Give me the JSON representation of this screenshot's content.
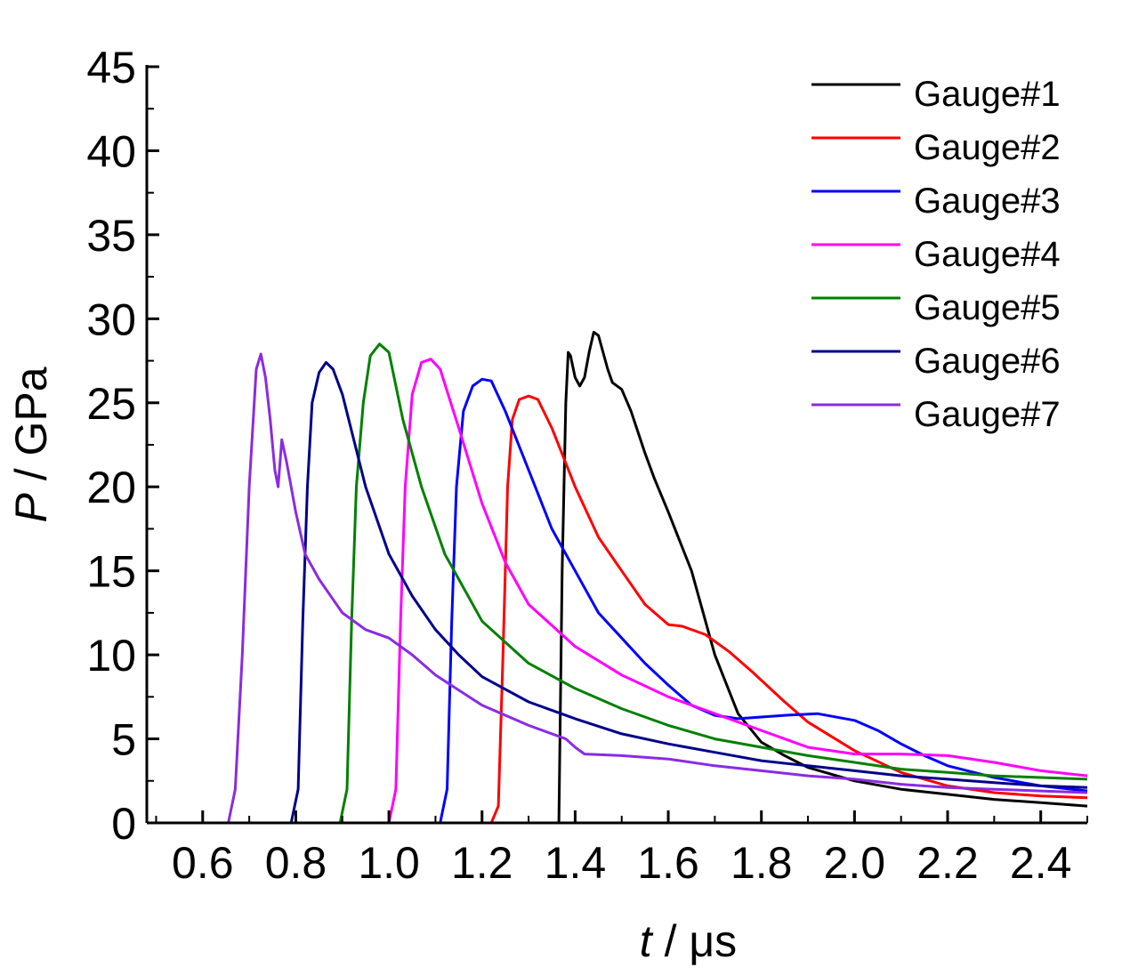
{
  "chart_data": {
    "type": "line",
    "xlabel": {
      "var": "t",
      "unit": " / μs"
    },
    "ylabel": {
      "var": "P",
      "unit": " / GPa"
    },
    "xlim": [
      0.48,
      2.5
    ],
    "ylim": [
      0,
      45
    ],
    "x_ticks": [
      "0.6",
      "0.8",
      "1.0",
      "1.2",
      "1.4",
      "1.6",
      "1.8",
      "2.0",
      "2.2",
      "2.4"
    ],
    "y_ticks": [
      "0",
      "5",
      "10",
      "15",
      "20",
      "25",
      "30",
      "35",
      "40",
      "45"
    ],
    "grid": false,
    "legend_position": "top-right",
    "series": [
      {
        "name": "Gauge#1",
        "color": "#000000",
        "points": [
          [
            0.48,
            0
          ],
          [
            1.365,
            0
          ],
          [
            1.372,
            15
          ],
          [
            1.38,
            25
          ],
          [
            1.385,
            28
          ],
          [
            1.39,
            27.8
          ],
          [
            1.4,
            26.5
          ],
          [
            1.41,
            26
          ],
          [
            1.42,
            26.5
          ],
          [
            1.43,
            28
          ],
          [
            1.44,
            29.2
          ],
          [
            1.45,
            29
          ],
          [
            1.47,
            27
          ],
          [
            1.48,
            26.2
          ],
          [
            1.5,
            25.8
          ],
          [
            1.52,
            24.5
          ],
          [
            1.55,
            22
          ],
          [
            1.57,
            20.5
          ],
          [
            1.6,
            18.5
          ],
          [
            1.65,
            15
          ],
          [
            1.7,
            10
          ],
          [
            1.75,
            6.5
          ],
          [
            1.8,
            4.8
          ],
          [
            1.85,
            4
          ],
          [
            1.9,
            3.3
          ],
          [
            2.0,
            2.5
          ],
          [
            2.1,
            2
          ],
          [
            2.2,
            1.7
          ],
          [
            2.3,
            1.4
          ],
          [
            2.4,
            1.2
          ],
          [
            2.5,
            1.0
          ]
        ]
      },
      {
        "name": "Gauge#2",
        "color": "#ff0000",
        "points": [
          [
            0.48,
            0
          ],
          [
            1.22,
            0
          ],
          [
            1.235,
            1
          ],
          [
            1.245,
            10
          ],
          [
            1.255,
            20
          ],
          [
            1.265,
            24
          ],
          [
            1.28,
            25.2
          ],
          [
            1.3,
            25.4
          ],
          [
            1.32,
            25.2
          ],
          [
            1.35,
            23.5
          ],
          [
            1.4,
            20
          ],
          [
            1.45,
            17
          ],
          [
            1.5,
            15
          ],
          [
            1.55,
            13
          ],
          [
            1.6,
            11.8
          ],
          [
            1.63,
            11.7
          ],
          [
            1.68,
            11.2
          ],
          [
            1.73,
            10.2
          ],
          [
            1.78,
            9
          ],
          [
            1.85,
            7.2
          ],
          [
            1.9,
            6
          ],
          [
            2.0,
            4.3
          ],
          [
            2.1,
            3
          ],
          [
            2.2,
            2.2
          ],
          [
            2.3,
            1.8
          ],
          [
            2.4,
            1.6
          ],
          [
            2.5,
            1.5
          ]
        ]
      },
      {
        "name": "Gauge#3",
        "color": "#0000ff",
        "points": [
          [
            0.48,
            0
          ],
          [
            1.11,
            0
          ],
          [
            1.125,
            2
          ],
          [
            1.135,
            12
          ],
          [
            1.145,
            20
          ],
          [
            1.16,
            24.5
          ],
          [
            1.18,
            26
          ],
          [
            1.2,
            26.4
          ],
          [
            1.22,
            26.3
          ],
          [
            1.25,
            24.5
          ],
          [
            1.3,
            21
          ],
          [
            1.35,
            17.5
          ],
          [
            1.4,
            15
          ],
          [
            1.45,
            12.5
          ],
          [
            1.5,
            11
          ],
          [
            1.55,
            9.5
          ],
          [
            1.6,
            8.2
          ],
          [
            1.65,
            7
          ],
          [
            1.7,
            6.4
          ],
          [
            1.75,
            6.2
          ],
          [
            1.8,
            6.3
          ],
          [
            1.85,
            6.4
          ],
          [
            1.92,
            6.5
          ],
          [
            2.0,
            6.1
          ],
          [
            2.05,
            5.5
          ],
          [
            2.1,
            4.7
          ],
          [
            2.15,
            4
          ],
          [
            2.2,
            3.4
          ],
          [
            2.3,
            2.7
          ],
          [
            2.4,
            2.2
          ],
          [
            2.5,
            1.9
          ]
        ]
      },
      {
        "name": "Gauge#4",
        "color": "#ff00ff",
        "points": [
          [
            0.48,
            0
          ],
          [
            1.0,
            0
          ],
          [
            1.015,
            2
          ],
          [
            1.025,
            12
          ],
          [
            1.035,
            20
          ],
          [
            1.05,
            25.5
          ],
          [
            1.07,
            27.4
          ],
          [
            1.09,
            27.6
          ],
          [
            1.11,
            27
          ],
          [
            1.15,
            23.5
          ],
          [
            1.2,
            19
          ],
          [
            1.25,
            15.5
          ],
          [
            1.3,
            13
          ],
          [
            1.4,
            10.5
          ],
          [
            1.5,
            8.8
          ],
          [
            1.6,
            7.5
          ],
          [
            1.7,
            6.5
          ],
          [
            1.8,
            5.5
          ],
          [
            1.9,
            4.5
          ],
          [
            2.0,
            4.1
          ],
          [
            2.1,
            4.1
          ],
          [
            2.2,
            4.0
          ],
          [
            2.3,
            3.6
          ],
          [
            2.4,
            3.1
          ],
          [
            2.5,
            2.8
          ]
        ]
      },
      {
        "name": "Gauge#5",
        "color": "#008000",
        "points": [
          [
            0.48,
            0
          ],
          [
            0.895,
            0
          ],
          [
            0.91,
            2
          ],
          [
            0.92,
            12
          ],
          [
            0.93,
            20
          ],
          [
            0.945,
            25
          ],
          [
            0.96,
            27.8
          ],
          [
            0.98,
            28.5
          ],
          [
            1.0,
            28
          ],
          [
            1.03,
            24
          ],
          [
            1.07,
            20
          ],
          [
            1.12,
            16
          ],
          [
            1.2,
            12
          ],
          [
            1.3,
            9.5
          ],
          [
            1.4,
            8
          ],
          [
            1.5,
            6.8
          ],
          [
            1.6,
            5.8
          ],
          [
            1.7,
            5
          ],
          [
            1.8,
            4.5
          ],
          [
            1.9,
            4
          ],
          [
            2.0,
            3.6
          ],
          [
            2.1,
            3.2
          ],
          [
            2.2,
            3
          ],
          [
            2.3,
            2.8
          ],
          [
            2.4,
            2.7
          ],
          [
            2.5,
            2.6
          ]
        ]
      },
      {
        "name": "Gauge#6",
        "color": "#00008b",
        "points": [
          [
            0.48,
            0
          ],
          [
            0.79,
            0
          ],
          [
            0.805,
            2
          ],
          [
            0.815,
            12
          ],
          [
            0.825,
            20
          ],
          [
            0.835,
            25
          ],
          [
            0.85,
            26.8
          ],
          [
            0.865,
            27.4
          ],
          [
            0.88,
            27
          ],
          [
            0.9,
            25.5
          ],
          [
            0.95,
            20
          ],
          [
            1.0,
            16
          ],
          [
            1.05,
            13.5
          ],
          [
            1.1,
            11.5
          ],
          [
            1.15,
            10
          ],
          [
            1.2,
            8.7
          ],
          [
            1.3,
            7.2
          ],
          [
            1.4,
            6.2
          ],
          [
            1.5,
            5.3
          ],
          [
            1.6,
            4.7
          ],
          [
            1.7,
            4.2
          ],
          [
            1.8,
            3.7
          ],
          [
            1.9,
            3.4
          ],
          [
            2.0,
            3.1
          ],
          [
            2.1,
            2.8
          ],
          [
            2.2,
            2.6
          ],
          [
            2.3,
            2.4
          ],
          [
            2.4,
            2.2
          ],
          [
            2.5,
            2.1
          ]
        ]
      },
      {
        "name": "Gauge#7",
        "color": "#8a2be2",
        "points": [
          [
            0.48,
            0
          ],
          [
            0.655,
            0
          ],
          [
            0.67,
            2
          ],
          [
            0.685,
            10
          ],
          [
            0.7,
            20
          ],
          [
            0.715,
            27
          ],
          [
            0.725,
            27.9
          ],
          [
            0.735,
            26.5
          ],
          [
            0.745,
            24
          ],
          [
            0.755,
            21
          ],
          [
            0.762,
            20
          ],
          [
            0.77,
            22.8
          ],
          [
            0.78,
            21.5
          ],
          [
            0.8,
            18.5
          ],
          [
            0.82,
            16
          ],
          [
            0.85,
            14.5
          ],
          [
            0.9,
            12.5
          ],
          [
            0.95,
            11.5
          ],
          [
            1.0,
            11
          ],
          [
            1.05,
            10
          ],
          [
            1.1,
            8.8
          ],
          [
            1.2,
            7
          ],
          [
            1.3,
            5.8
          ],
          [
            1.38,
            5
          ],
          [
            1.4,
            4.5
          ],
          [
            1.42,
            4.1
          ],
          [
            1.5,
            4
          ],
          [
            1.6,
            3.8
          ],
          [
            1.7,
            3.4
          ],
          [
            1.8,
            3.1
          ],
          [
            1.9,
            2.8
          ],
          [
            2.0,
            2.6
          ],
          [
            2.1,
            2.3
          ],
          [
            2.2,
            2.1
          ],
          [
            2.3,
            2
          ],
          [
            2.4,
            1.9
          ],
          [
            2.5,
            1.8
          ]
        ]
      }
    ]
  }
}
